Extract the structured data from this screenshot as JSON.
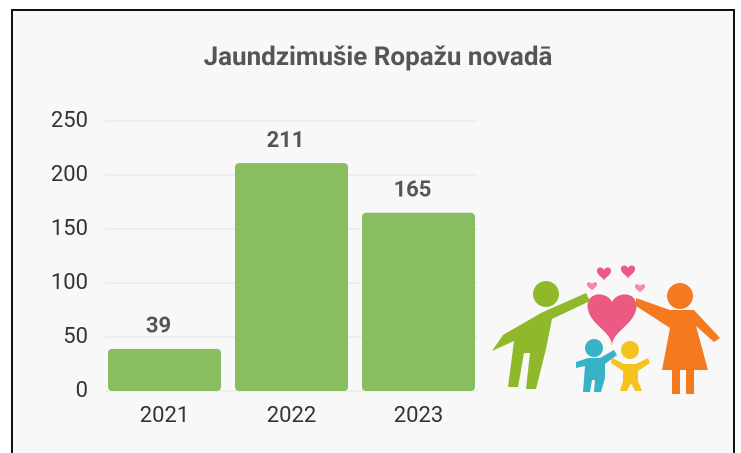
{
  "chart_data": {
    "type": "bar",
    "title": "Jaundzimušie Ropažu novadā",
    "categories": [
      "2021",
      "2022",
      "2023"
    ],
    "values": [
      39,
      211,
      165
    ],
    "color": "#88bd62",
    "ylim": [
      0,
      250
    ],
    "yticks": [
      0,
      50,
      100,
      150,
      200,
      250
    ],
    "grid": true
  }
}
